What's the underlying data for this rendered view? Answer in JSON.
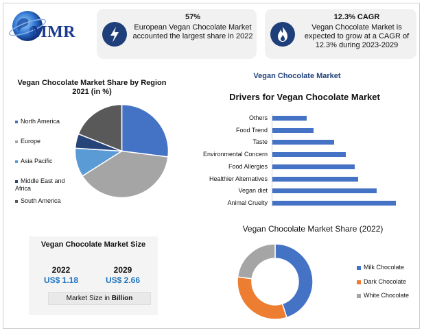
{
  "logo": {
    "text": "MMR"
  },
  "stats": [
    {
      "title": "57%",
      "description": "European Vegan Chocolate Market accounted the largest share in 2022",
      "icon": "lightning-icon"
    },
    {
      "title": "12.3% CAGR",
      "description": "Vegan Chocolate Market is expected to grow at a CAGR of 12.3% during 2023-2029",
      "icon": "flame-icon"
    }
  ],
  "region": {
    "title_line1": "Vegan Chocolate Market Share by Region",
    "title_line2": "2021 (in %)",
    "legend": [
      {
        "label": "North America",
        "color": "#4472c4"
      },
      {
        "label": "Europe",
        "color": "#a5a5a5"
      },
      {
        "label": "Asia Pacific",
        "color": "#5b9bd5"
      },
      {
        "label": "Middle East and Africa",
        "color": "#264478"
      },
      {
        "label": "South America",
        "color": "#595959"
      }
    ]
  },
  "market_size": {
    "title": "Vegan Chocolate Market Size",
    "year1": "2022",
    "value1": "US$ 1.18",
    "year2": "2029",
    "value2": "US$ 2.66",
    "note_prefix": "Market Size in ",
    "note_unit": "Billion"
  },
  "drivers": {
    "header": "Vegan Chocolate Market",
    "title": "Drivers for Vegan Chocolate Market"
  },
  "share2022": {
    "title": "Vegan Chocolate Market Share (2022)",
    "legend": [
      {
        "label": "Milk Chocolate",
        "color": "#4472c4"
      },
      {
        "label": "Dark Chocolate",
        "color": "#ed7d31"
      },
      {
        "label": "White Chocolate",
        "color": "#a5a5a5"
      }
    ]
  },
  "chart_data": [
    {
      "type": "pie",
      "title": "Vegan Chocolate Market Share by Region 2021 (in %)",
      "categories": [
        "North America",
        "Europe",
        "Asia Pacific",
        "Middle East and Africa",
        "South America"
      ],
      "values": [
        27,
        39,
        10,
        5,
        19
      ],
      "colors": [
        "#4472c4",
        "#a5a5a5",
        "#5b9bd5",
        "#264478",
        "#595959"
      ]
    },
    {
      "type": "bar",
      "orientation": "horizontal",
      "title": "Drivers for Vegan Chocolate Market",
      "categories": [
        "Others",
        "Food Trend",
        "Taste",
        "Environmental Concern",
        "Food Allergies",
        "Healthier Alternatives",
        "Vegan diet",
        "Animal Cruelty"
      ],
      "values": [
        50,
        60,
        90,
        107,
        120,
        125,
        152,
        180
      ],
      "xlim": [
        0,
        180
      ],
      "color": "#4472c4",
      "grid": false
    },
    {
      "type": "pie",
      "donut": true,
      "title": "Vegan Chocolate Market Share (2022)",
      "categories": [
        "Milk Chocolate",
        "Dark Chocolate",
        "White Chocolate"
      ],
      "values": [
        45,
        32,
        23
      ],
      "colors": [
        "#4472c4",
        "#ed7d31",
        "#a5a5a5"
      ]
    }
  ]
}
